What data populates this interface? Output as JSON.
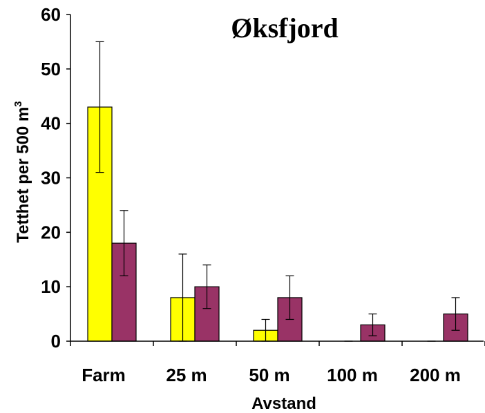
{
  "chart_data": {
    "type": "bar",
    "title": "Øksfjord",
    "xlabel": "Avstand",
    "ylabel": "Tetthet per 500 m",
    "ylabel_superscript": "3",
    "categories": [
      "Farm",
      "25 m",
      "50 m",
      "100 m",
      "200 m"
    ],
    "ylim": [
      0,
      60
    ],
    "yticks": [
      "0",
      "10",
      "20",
      "30",
      "40",
      "50",
      "60"
    ],
    "grid": false,
    "legend": "none",
    "series": [
      {
        "color": "#ffff00",
        "values": [
          43,
          8,
          2,
          0,
          0
        ],
        "error": [
          12,
          8,
          2,
          0,
          0
        ]
      },
      {
        "color": "#993366",
        "values": [
          18,
          10,
          8,
          3,
          5
        ],
        "error": [
          6,
          4,
          4,
          2,
          3
        ]
      }
    ]
  }
}
